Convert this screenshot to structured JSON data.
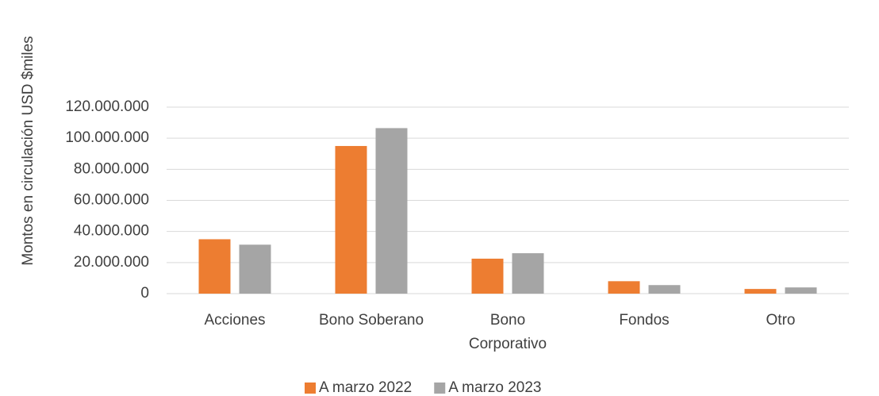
{
  "chart_data": {
    "type": "bar",
    "y_axis_label": "Montos en circulación USD $miles",
    "categories": [
      "Acciones",
      "Bono Soberano",
      "Bono Corporativo",
      "Fondos",
      "Otro"
    ],
    "series": [
      {
        "name": "A marzo 2022",
        "color": "#ed7d31",
        "values": [
          35000000,
          95000000,
          22500000,
          8000000,
          3000000
        ]
      },
      {
        "name": "A marzo 2023",
        "color": "#a5a5a5",
        "values": [
          31500000,
          106500000,
          26000000,
          5500000,
          4000000
        ]
      }
    ],
    "ylim": [
      0,
      120000000
    ],
    "yticks": [
      0,
      {
        "value": 20000000,
        "label": "20.000.000"
      },
      {
        "value": 40000000,
        "label": "40.000.000"
      },
      {
        "value": 60000000,
        "label": "60.000.000"
      },
      {
        "value": 80000000,
        "label": "80.000.000"
      },
      {
        "value": 100000000,
        "label": "100.000.000"
      },
      {
        "value": 120000000,
        "label": "120.000.000"
      }
    ],
    "grid": true,
    "legend": "bottom"
  }
}
